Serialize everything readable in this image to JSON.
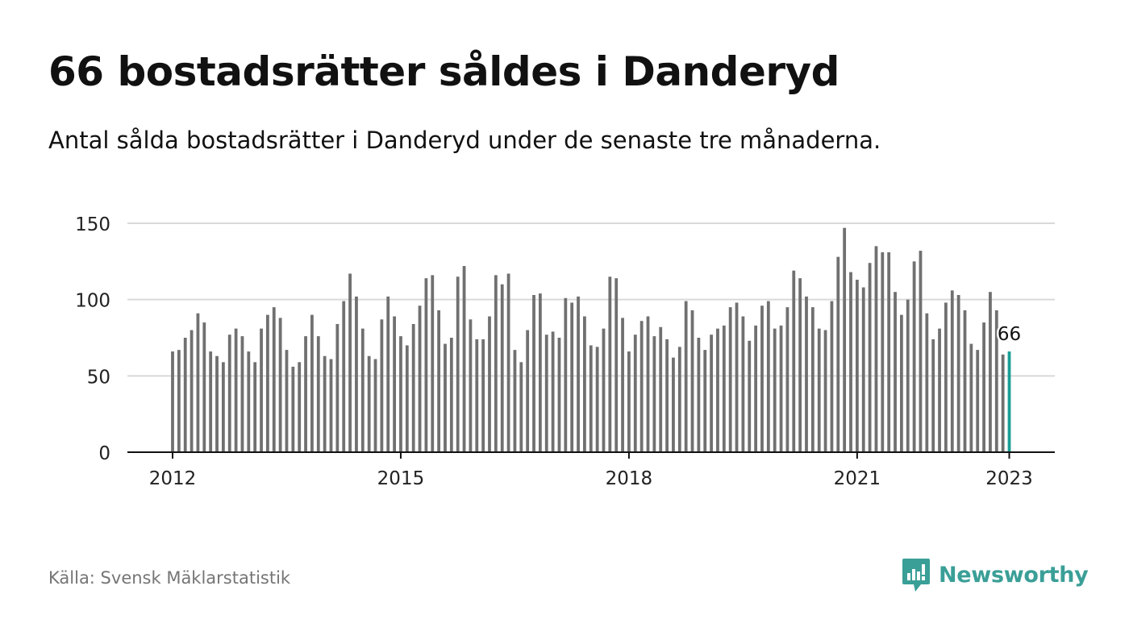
{
  "header": {
    "title": "66 bostadsrätter såldes i Danderyd",
    "subtitle": "Antal sålda bostadsrätter i Danderyd under de senaste tre månaderna."
  },
  "footer": {
    "source": "Källa: Svensk Mäklarstatistik",
    "brand": "Newsworthy",
    "brand_icon": "bar-chart-speech-bubble-icon"
  },
  "colors": {
    "bar": "#707070",
    "highlight": "#1a9e96",
    "grid": "#d9d9d9",
    "axis": "#111111",
    "brand": "#3a9f97"
  },
  "chart_data": {
    "type": "bar",
    "x_start": "2012-01",
    "x_step": "month",
    "values": [
      66,
      67,
      75,
      80,
      91,
      85,
      66,
      63,
      59,
      77,
      81,
      76,
      66,
      59,
      81,
      90,
      95,
      88,
      67,
      56,
      59,
      76,
      90,
      76,
      63,
      61,
      84,
      99,
      117,
      102,
      81,
      63,
      61,
      87,
      102,
      89,
      76,
      70,
      84,
      96,
      114,
      116,
      93,
      71,
      75,
      115,
      122,
      87,
      74,
      74,
      89,
      116,
      110,
      117,
      67,
      59,
      80,
      103,
      104,
      77,
      79,
      75,
      101,
      98,
      102,
      89,
      70,
      69,
      81,
      115,
      114,
      88,
      66,
      77,
      86,
      89,
      76,
      82,
      74,
      62,
      69,
      99,
      93,
      75,
      67,
      77,
      81,
      83,
      95,
      98,
      89,
      73,
      83,
      96,
      99,
      81,
      83,
      95,
      119,
      114,
      102,
      95,
      81,
      80,
      99,
      128,
      147,
      118,
      113,
      108,
      124,
      135,
      131,
      131,
      105,
      90,
      100,
      125,
      132,
      91,
      74,
      81,
      98,
      106,
      103,
      93,
      71,
      67,
      85,
      105,
      93,
      64,
      66
    ],
    "highlight_last": true,
    "highlight_label": "66",
    "x_ticks": [
      {
        "label": "2012",
        "value": "2012-01"
      },
      {
        "label": "2015",
        "value": "2015-01"
      },
      {
        "label": "2018",
        "value": "2018-01"
      },
      {
        "label": "2021",
        "value": "2021-01"
      },
      {
        "label": "2023",
        "value": "2023-01"
      }
    ],
    "y_ticks": [
      0,
      50,
      100,
      150
    ],
    "ylim": [
      0,
      150
    ],
    "grid": true,
    "legend": "none",
    "xlabel": "",
    "ylabel": ""
  }
}
